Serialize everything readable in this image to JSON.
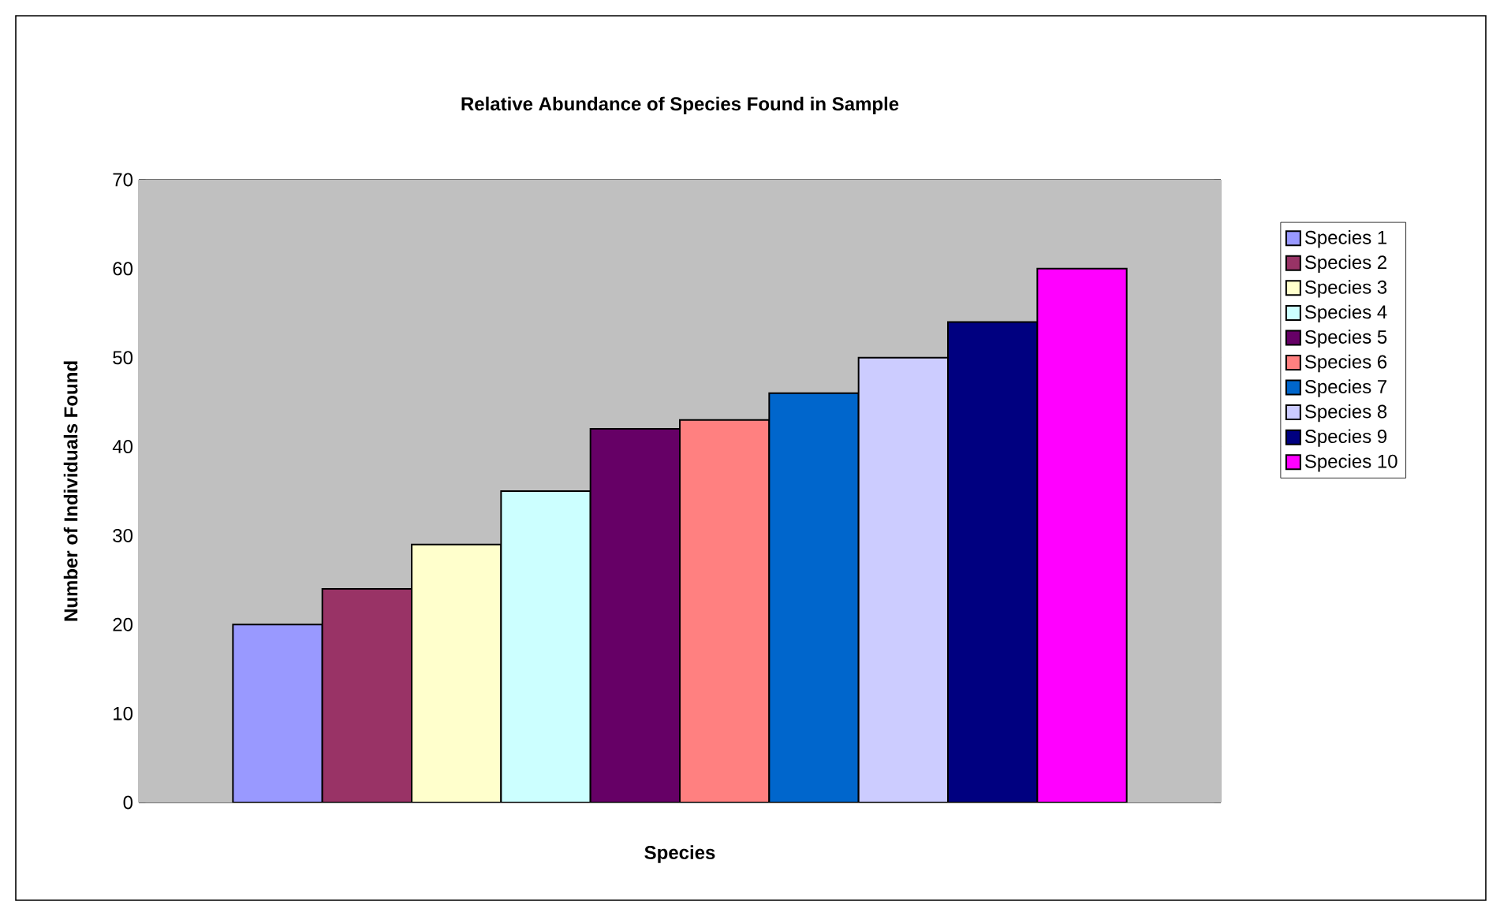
{
  "chart_data": {
    "type": "bar",
    "title": "Relative Abundance of Species Found in Sample",
    "xlabel": "Species",
    "ylabel": "Number of Individuals Found",
    "categories": [
      null
    ],
    "series": [
      {
        "name": "Species 1",
        "color": "#9999ff",
        "values": [
          20
        ]
      },
      {
        "name": "Species 2",
        "color": "#993366",
        "values": [
          24
        ]
      },
      {
        "name": "Species 3",
        "color": "#ffffcc",
        "values": [
          29
        ]
      },
      {
        "name": "Species 4",
        "color": "#ccffff",
        "values": [
          35
        ]
      },
      {
        "name": "Species 5",
        "color": "#660066",
        "values": [
          42
        ]
      },
      {
        "name": "Species 6",
        "color": "#ff8080",
        "values": [
          43
        ]
      },
      {
        "name": "Species 7",
        "color": "#0066cc",
        "values": [
          46
        ]
      },
      {
        "name": "Species 8",
        "color": "#ccccff",
        "values": [
          50
        ]
      },
      {
        "name": "Species 9",
        "color": "#000080",
        "values": [
          54
        ]
      },
      {
        "name": "Species 10",
        "color": "#ff00ff",
        "values": [
          60
        ]
      }
    ],
    "ylim": [
      0,
      70
    ],
    "yticks": [
      0,
      10,
      20,
      30,
      40,
      50,
      60,
      70
    ],
    "grid": "y",
    "legend": "right"
  }
}
